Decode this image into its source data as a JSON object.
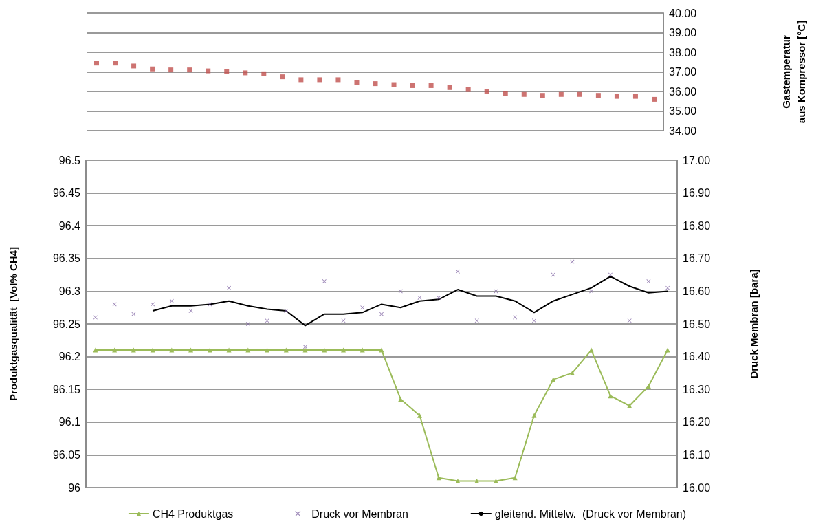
{
  "chart_data": [
    {
      "type": "scatter",
      "categories": [
        null,
        null,
        null,
        null,
        null,
        null,
        null,
        null,
        null,
        null,
        null,
        null,
        null,
        null,
        null,
        null,
        null,
        null,
        null,
        null,
        null,
        null,
        null,
        null,
        null,
        null,
        null,
        null,
        null,
        null,
        null
      ],
      "y2label": "Gastemperatur\naus Kompressor [°C]",
      "y2lim": [
        34,
        40
      ],
      "y2ticks": [
        {
          "value": 34,
          "label": "34.00"
        },
        {
          "value": 35,
          "label": "35.00"
        },
        {
          "value": 36,
          "label": "36.00"
        },
        {
          "value": 37,
          "label": "37.00"
        },
        {
          "value": 38,
          "label": "38.00"
        },
        {
          "value": 39,
          "label": "39.00"
        },
        {
          "value": 40,
          "label": "40.00"
        }
      ],
      "grid": "y",
      "marker": "square",
      "series": [
        {
          "color": "#c0504d",
          "axis": "y2",
          "values": [
            37.45,
            37.45,
            37.3,
            37.15,
            37.1,
            37.1,
            37.05,
            37.0,
            36.95,
            36.9,
            36.75,
            36.6,
            36.6,
            36.6,
            36.45,
            36.4,
            36.35,
            36.3,
            36.3,
            36.2,
            36.1,
            36.0,
            35.9,
            35.85,
            35.8,
            35.85,
            35.85,
            35.8,
            35.75,
            35.75,
            35.6
          ]
        }
      ]
    },
    {
      "type": "line",
      "categories": [
        null,
        null,
        null,
        null,
        null,
        null,
        null,
        null,
        null,
        null,
        null,
        null,
        null,
        null,
        null,
        null,
        null,
        null,
        null,
        null,
        null,
        null,
        null,
        null,
        null,
        null,
        null,
        null,
        null,
        null,
        null
      ],
      "ylabel": "Produktgasqualität  [Vol% CH4]",
      "y2label": "Druck Membran [bara]",
      "ylim": [
        96,
        96.5
      ],
      "yticks": [
        96,
        96.05,
        96.1,
        96.15,
        96.2,
        96.25,
        96.3,
        96.35,
        96.4,
        96.45,
        96.5
      ],
      "y2lim": [
        16,
        17
      ],
      "y2ticks": [
        {
          "value": 16,
          "label": "16.00"
        },
        {
          "value": 16.1,
          "label": "16.10"
        },
        {
          "value": 16.2,
          "label": "16.20"
        },
        {
          "value": 16.3,
          "label": "16.30"
        },
        {
          "value": 16.4,
          "label": "16.40"
        },
        {
          "value": 16.5,
          "label": "16.50"
        },
        {
          "value": 16.6,
          "label": "16.60"
        },
        {
          "value": 16.7,
          "label": "16.70"
        },
        {
          "value": 16.8,
          "label": "16.80"
        },
        {
          "value": 16.9,
          "label": "16.90"
        },
        {
          "value": 17,
          "label": "17.00"
        }
      ],
      "grid": "y",
      "legend": "bottom",
      "series": [
        {
          "name": "CH4 Produktgas",
          "type": "line",
          "marker": "triangle",
          "color": "#9bbb59",
          "values": [
            96.21,
            96.21,
            96.21,
            96.21,
            96.21,
            96.21,
            96.21,
            96.21,
            96.21,
            96.21,
            96.21,
            96.21,
            96.21,
            96.21,
            96.21,
            96.21,
            96.135,
            96.11,
            96.015,
            96.01,
            96.01,
            96.01,
            96.015,
            96.11,
            96.165,
            96.175,
            96.21,
            96.14,
            96.125,
            96.155,
            96.21
          ]
        },
        {
          "name": "Druck vor Membran",
          "type": "scatter",
          "marker": "cross",
          "axis": "y2",
          "color": "#8064a2",
          "values": [
            16.52,
            16.56,
            16.53,
            16.56,
            16.57,
            16.54,
            16.56,
            16.61,
            16.5,
            16.51,
            16.54,
            16.43,
            16.63,
            16.51,
            16.55,
            16.53,
            16.6,
            16.58,
            16.58,
            16.66,
            16.51,
            16.6,
            16.52,
            16.51,
            16.65,
            16.69,
            16.6,
            16.65,
            16.51,
            16.63,
            16.61
          ]
        },
        {
          "name": "gleitend. Mittelw.  (Druck vor Membran)",
          "type": "line",
          "marker": "none",
          "axis": "y2",
          "color": "#000000",
          "values": [
            null,
            null,
            null,
            16.54,
            16.555,
            16.555,
            16.56,
            16.57,
            16.555,
            16.545,
            16.54,
            16.495,
            16.53,
            16.53,
            16.535,
            16.56,
            16.55,
            16.57,
            16.575,
            16.605,
            16.585,
            16.585,
            16.57,
            16.535,
            16.57,
            16.59,
            16.61,
            16.645,
            16.615,
            16.595,
            16.6
          ]
        }
      ]
    }
  ]
}
